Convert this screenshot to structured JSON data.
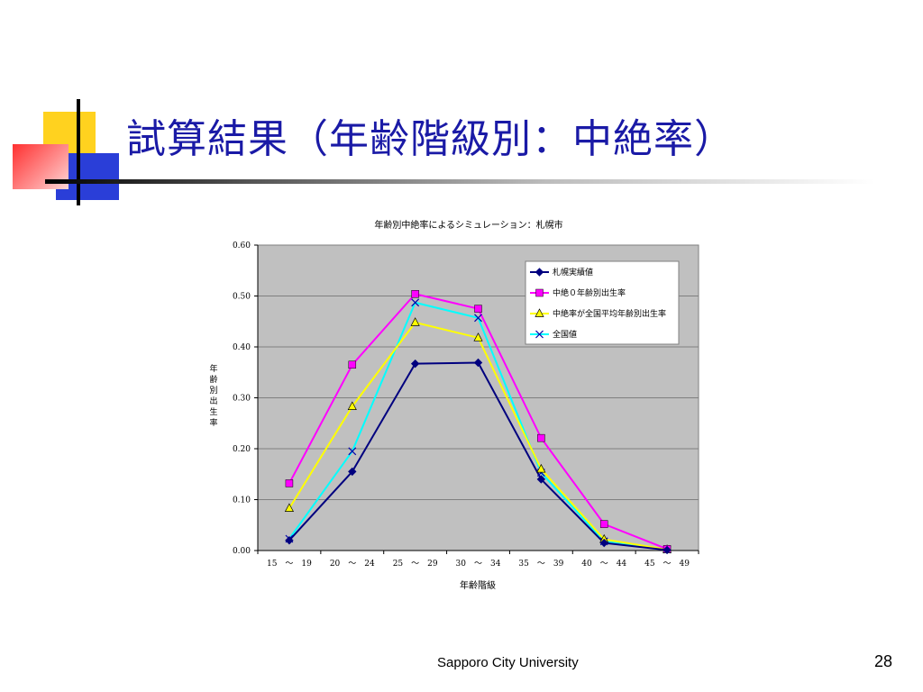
{
  "slide": {
    "title": "試算結果（年齢階級別：中絶率）",
    "footer": "Sapporo City University",
    "page_number": "28"
  },
  "chart_data": {
    "type": "line",
    "title": "年齢別中絶率によるシミュレーション：札幌市",
    "xlabel": "年齢階級",
    "ylabel": "年齢別出生率",
    "categories": [
      "15　～　19",
      "20　～　24",
      "25　～　29",
      "30　～　34",
      "35　～　39",
      "40　～　44",
      "45　～　49"
    ],
    "ylim": [
      0,
      0.6
    ],
    "yticks": [
      "0.00",
      "0.10",
      "0.20",
      "0.30",
      "0.40",
      "0.50",
      "0.60"
    ],
    "grid": true,
    "legend_position": "top-right",
    "series": [
      {
        "name": "札幌実績値",
        "color": "#00007f",
        "marker": "diamond",
        "values": [
          0.02,
          0.155,
          0.367,
          0.369,
          0.14,
          0.015,
          0.001
        ]
      },
      {
        "name": "中絶０年齢別出生率",
        "color": "#ff00ff",
        "marker": "square",
        "values": [
          0.132,
          0.365,
          0.504,
          0.475,
          0.221,
          0.052,
          0.003
        ]
      },
      {
        "name": "中絶率が全国平均年齢別出生率",
        "color": "#ffff00",
        "marker": "triangle",
        "values": [
          0.083,
          0.283,
          0.448,
          0.418,
          0.16,
          0.022,
          0.002
        ]
      },
      {
        "name": "全国値",
        "color": "#00ffff",
        "marker": "x",
        "values": [
          0.023,
          0.195,
          0.487,
          0.457,
          0.153,
          0.018,
          0.002
        ]
      }
    ]
  }
}
